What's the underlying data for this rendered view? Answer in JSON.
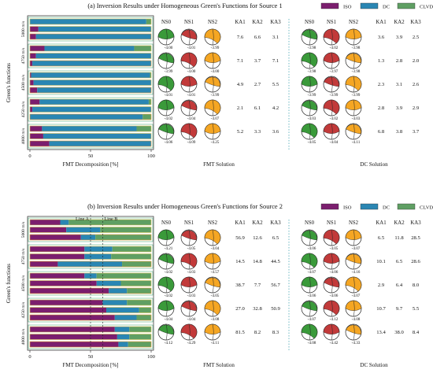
{
  "colors": {
    "iso": "#7b1e6e",
    "dc": "#2a86b3",
    "clvd": "#5f9f63",
    "box_a": "#23a07a",
    "box_b": "#e9a13a",
    "ns0": "#3a9a3a",
    "ns1": "#c23a3a",
    "ns2": "#f5a623",
    "dc_line": "#4aa7b5",
    "bar_border_a": "#d8c35a",
    "bar_border_b": "#e7a13a"
  },
  "legend": {
    "iso": "ISO",
    "dc": "DC",
    "clvd": "CLVD"
  },
  "panels": [
    {
      "id": "a",
      "title": "(a) Inversion Results under Homogeneous Green's Functions for Source 1",
      "ylabel": "Green's functions",
      "row_labels": [
        "5000 m/s",
        "4750 m/s",
        "4500 m/s",
        "4250 m/s",
        "4000 m/s"
      ],
      "x_ticks": [
        "0",
        "50",
        "100"
      ],
      "xlabel": "FMT Decomposition [%]",
      "fmt_label": "FMT Solution",
      "dc_label": "DC Solution",
      "fmt_headers": [
        "NS0",
        "NS1",
        "NS2"
      ],
      "ka_headers": [
        "KA1",
        "KA2",
        "KA3"
      ],
      "dc_headers": [
        "NS0",
        "NS1",
        "NS2"
      ],
      "dc_ka_headers": [
        "KA1",
        "KA2",
        "KA3"
      ],
      "rows": [
        {
          "bars": [
            [
              0,
              0,
              96,
              4
            ],
            [
              1,
              7,
              93,
              0
            ],
            [
              2,
              5,
              95,
              0
            ]
          ],
          "fmt_vals": [
            "-4.00",
            "-4.01",
            "-3.99"
          ],
          "ka": [
            "7.6",
            "6.6",
            "3.1"
          ],
          "dc_vals": [
            "-3.98",
            "-4.02",
            "-3.98"
          ],
          "dc_ka": [
            "3.6",
            "3.9",
            "2.5"
          ]
        },
        {
          "bars": [
            [
              0,
              12,
              74,
              14
            ],
            [
              1,
              5,
              95,
              0
            ],
            [
              2,
              2,
              98,
              0
            ]
          ],
          "fmt_vals": [
            "-3.99",
            "-4.00",
            "-4.00"
          ],
          "ka": [
            "7.1",
            "3.7",
            "7.1"
          ],
          "dc_vals": [
            "-3.98",
            "-3.97",
            "-3.98"
          ],
          "dc_ka": [
            "1.3",
            "2.8",
            "2.0"
          ]
        },
        {
          "bars": [
            [
              0,
              1,
              98,
              1
            ],
            [
              1,
              3,
              97,
              0
            ],
            [
              2,
              6,
              94,
              0
            ]
          ],
          "fmt_vals": [
            "-4.01",
            "-4.01",
            "-3.99"
          ],
          "ka": [
            "4.9",
            "2.7",
            "5.5"
          ],
          "dc_vals": [
            "-3.99",
            "-3.99",
            "-3.99"
          ],
          "dc_ka": [
            "2.3",
            "3.1",
            "2.6"
          ]
        },
        {
          "bars": [
            [
              0,
              8,
              90,
              2
            ],
            [
              1,
              2,
              98,
              0
            ],
            [
              2,
              0,
              93,
              7
            ]
          ],
          "fmt_vals": [
            "-4.02",
            "-4.04",
            "-4.07"
          ],
          "ka": [
            "2.1",
            "6.1",
            "4.2"
          ],
          "dc_vals": [
            "-4.03",
            "-4.02",
            "-4.03"
          ],
          "dc_ka": [
            "2.8",
            "3.9",
            "2.9"
          ]
        },
        {
          "bars": [
            [
              0,
              10,
              78,
              12
            ],
            [
              1,
              11,
              89,
              0
            ],
            [
              2,
              16,
              84,
              0
            ]
          ],
          "fmt_vals": [
            "-4.06",
            "-4.09",
            "-4.25"
          ],
          "ka": [
            "5.2",
            "3.3",
            "3.6"
          ],
          "dc_vals": [
            "-4.05",
            "-4.04",
            "-4.11"
          ],
          "dc_ka": [
            "6.8",
            "3.8",
            "3.7"
          ]
        }
      ]
    },
    {
      "id": "b",
      "title": "(b) Inversion Results under Homogeneous Green's Functions for Source 2",
      "ylabel": "Green's functions",
      "row_labels": [
        "5000 m/s",
        "4750 m/s",
        "4500 m/s",
        "4250 m/s",
        "4000 m/s"
      ],
      "x_ticks": [
        "0",
        "50",
        "100"
      ],
      "xlabel": "FMT Decomposition [%]",
      "fmt_label": "FMT Solution",
      "dc_label": "DC Solution",
      "line_a": "Line A",
      "line_b": "Line B",
      "fmt_headers": [
        "NS0",
        "NS1",
        "NS2"
      ],
      "ka_headers": [
        "KA1",
        "KA2",
        "KA3"
      ],
      "dc_headers": [
        "NS0",
        "NS1",
        "NS2"
      ],
      "dc_ka_headers": [
        "KA1",
        "KA2",
        "KA3"
      ],
      "rows": [
        {
          "bars": [
            [
              0,
              25,
              7,
              68
            ],
            [
              1,
              30,
              28,
              42
            ],
            [
              2,
              42,
              12,
              46
            ]
          ],
          "fmt_vals": [
            "-4.21",
            "-4.05",
            "-4.04"
          ],
          "ka": [
            "56.9",
            "12.6",
            "6.5"
          ],
          "dc_vals": [
            "-4.06",
            "-4.05",
            "-4.07"
          ],
          "dc_ka": [
            "6.5",
            "11.8",
            "28.5"
          ]
        },
        {
          "bars": [
            [
              0,
              45,
              23,
              32
            ],
            [
              1,
              45,
              22,
              33
            ],
            [
              2,
              23,
              53,
              24
            ]
          ],
          "fmt_vals": [
            "-4.02",
            "-4.03",
            "-4.57"
          ],
          "ka": [
            "14.5",
            "14.8",
            "44.5"
          ],
          "dc_vals": [
            "-4.07",
            "-4.06",
            "-4.16"
          ],
          "dc_ka": [
            "10.1",
            "6.5",
            "28.6"
          ]
        },
        {
          "bars": [
            [
              0,
              45,
              10,
              45
            ],
            [
              1,
              55,
              20,
              25
            ],
            [
              2,
              65,
              15,
              20
            ]
          ],
          "fmt_vals": [
            "-4.02",
            "-4.03",
            "-4.05"
          ],
          "ka": [
            "38.7",
            "7.7",
            "56.7"
          ],
          "dc_vals": [
            "-4.06",
            "-4.06",
            "-4.07"
          ],
          "dc_ka": [
            "2.9",
            "6.4",
            "8.0"
          ]
        },
        {
          "bars": [
            [
              0,
              60,
              20,
              20
            ],
            [
              1,
              63,
              27,
              10
            ],
            [
              2,
              70,
              18,
              12
            ]
          ],
          "fmt_vals": [
            "-4.04",
            "-4.04",
            "-4.08"
          ],
          "ka": [
            "27.0",
            "32.8",
            "50.9"
          ],
          "dc_vals": [
            "-4.07",
            "-4.12",
            "-4.08"
          ],
          "dc_ka": [
            "10.7",
            "9.7",
            "5.5"
          ]
        },
        {
          "bars": [
            [
              0,
              70,
              12,
              18
            ],
            [
              1,
              72,
              10,
              18
            ],
            [
              2,
              73,
              8,
              19
            ]
          ],
          "fmt_vals": [
            "-4.12",
            "-4.29",
            "-4.11"
          ],
          "ka": [
            "81.5",
            "8.2",
            "8.3"
          ],
          "dc_vals": [
            "-4.08",
            "-4.42",
            "-4.33"
          ],
          "dc_ka": [
            "13.4",
            "38.0",
            "8.4"
          ]
        }
      ]
    }
  ]
}
